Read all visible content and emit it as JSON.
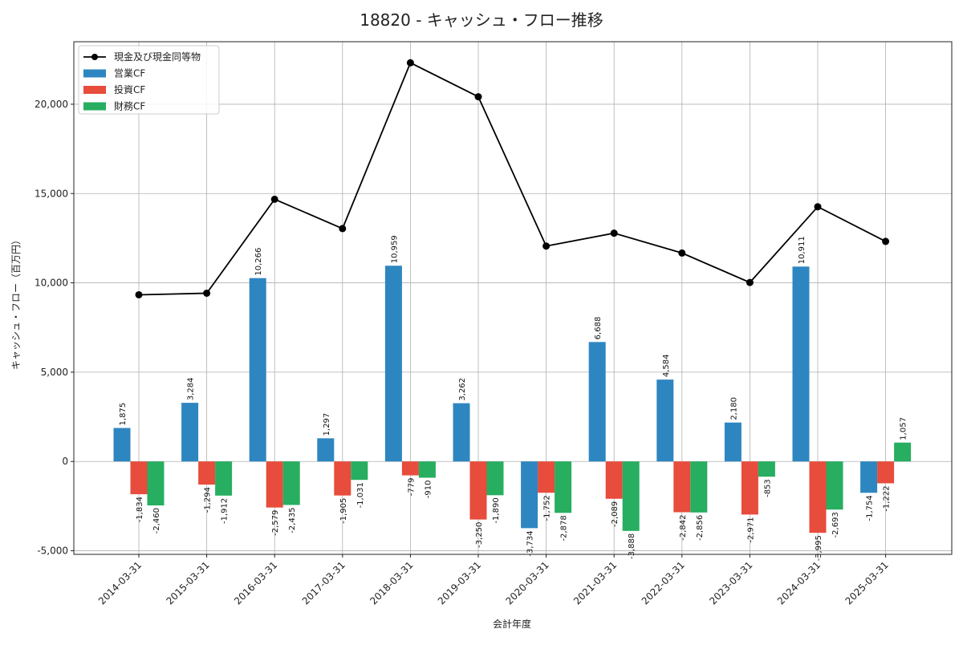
{
  "chart_data": {
    "type": "bar",
    "title": "18820 - キャッシュ・フロー推移",
    "xlabel": "会計年度",
    "ylabel": "キャッシュ・フロー（百万円）",
    "ylim": [
      -5200,
      23500
    ],
    "yticks": [
      -5000,
      0,
      5000,
      10000,
      15000,
      20000
    ],
    "ytick_labels": [
      "-5,000",
      "0",
      "5,000",
      "10,000",
      "15,000",
      "20,000"
    ],
    "grid": true,
    "legend_position": "top-left",
    "categories": [
      "2014-03-31",
      "2015-03-31",
      "2016-03-31",
      "2017-03-31",
      "2018-03-31",
      "2019-03-31",
      "2020-03-31",
      "2021-03-31",
      "2022-03-31",
      "2023-03-31",
      "2024-03-31",
      "2025-03-31"
    ],
    "series": [
      {
        "name": "営業CF",
        "type": "bar",
        "color": "#2e86c1",
        "values": [
          1875,
          3284,
          10266,
          1297,
          10959,
          3262,
          -3734,
          6688,
          4584,
          2180,
          10911,
          -1754
        ],
        "labels": [
          "1,875",
          "3,284",
          "10,266",
          "1,297",
          "10,959",
          "3,262",
          "-3,734",
          "6,688",
          "4,584",
          "2,180",
          "10,911",
          "-1,754"
        ]
      },
      {
        "name": "投資CF",
        "type": "bar",
        "color": "#e74c3c",
        "values": [
          -1834,
          -1294,
          -2579,
          -1905,
          -779,
          -3250,
          -1752,
          -2089,
          -2842,
          -2971,
          -3995,
          -1222
        ],
        "labels": [
          "-1,834",
          "-1,294",
          "-2,579",
          "-1,905",
          "-779",
          "-3,250",
          "-1,752",
          "-2,089",
          "-2,842",
          "-2,971",
          "-3,995",
          "-1,222"
        ]
      },
      {
        "name": "財務CF",
        "type": "bar",
        "color": "#27ae60",
        "values": [
          -2460,
          -1912,
          -2435,
          -1031,
          -910,
          -1890,
          -2878,
          -3888,
          -2856,
          -853,
          -2693,
          1057
        ],
        "labels": [
          "-2,460",
          "-1,912",
          "-2,435",
          "-1,031",
          "-910",
          "-1,890",
          "-2,878",
          "-3,888",
          "-2,856",
          "-853",
          "-2,693",
          "1,057"
        ]
      },
      {
        "name": "現金及び現金同等物",
        "type": "line",
        "color": "#000000",
        "values": [
          9330,
          9420,
          14680,
          13040,
          22320,
          20420,
          12060,
          12780,
          11670,
          10020,
          14260,
          12320
        ]
      }
    ]
  }
}
